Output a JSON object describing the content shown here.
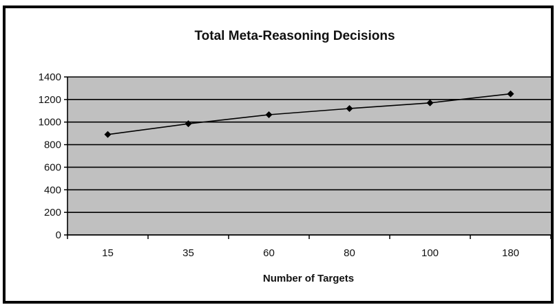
{
  "chart_data": {
    "type": "line",
    "title": "Total Meta-Reasoning Decisions",
    "xlabel": "Number of Targets",
    "ylabel": "",
    "categories": [
      "15",
      "35",
      "60",
      "80",
      "100",
      "180"
    ],
    "series": [
      {
        "values": [
          890,
          985,
          1065,
          1120,
          1170,
          1250
        ],
        "color": "#000000",
        "marker": "diamond"
      }
    ],
    "ylim": [
      0,
      1400
    ],
    "yticks": [
      0,
      200,
      400,
      600,
      800,
      1000,
      1200,
      1400
    ],
    "grid": true,
    "legend": "none",
    "plot_background": "#c0c0c0"
  }
}
